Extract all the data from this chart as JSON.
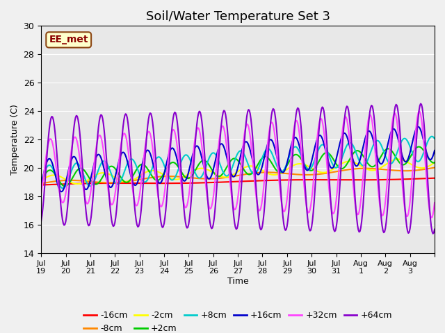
{
  "title": "Soil/Water Temperature Set 3",
  "ylabel": "Temperature (C)",
  "xlabel": "Time",
  "annotation": "EE_met",
  "ylim": [
    14,
    30
  ],
  "yticks": [
    14,
    16,
    18,
    20,
    22,
    24,
    26,
    28,
    30
  ],
  "xtick_positions": [
    0,
    1,
    2,
    3,
    4,
    5,
    6,
    7,
    8,
    9,
    10,
    11,
    12,
    13,
    14,
    15,
    16
  ],
  "xtick_labels": [
    "Jul\n19",
    "Jul\n20",
    "Jul\n21",
    "Jul\n22",
    "Jul\n23",
    "Jul\n24",
    "Jul\n25",
    "Jul\n26",
    "Jul\n27",
    "Jul\n28",
    "Jul\n29",
    "Jul\n30",
    "Jul\n31",
    "Aug\n1",
    "Aug\n2",
    "Aug\n3",
    ""
  ],
  "series_labels": [
    "-16cm",
    "-8cm",
    "-2cm",
    "+2cm",
    "+8cm",
    "+16cm",
    "+32cm",
    "+64cm"
  ],
  "series_colors": [
    "#ff0000",
    "#ff8800",
    "#ffff00",
    "#00cc00",
    "#00cccc",
    "#0000cc",
    "#ff44ff",
    "#8800cc"
  ],
  "series_linewidths": [
    1.5,
    1.5,
    1.5,
    1.5,
    1.5,
    1.5,
    1.5,
    1.5
  ],
  "n_points": 481,
  "background_color": "#e8e8e8",
  "plot_background": "#e8e8e8",
  "title_fontsize": 13,
  "axis_fontsize": 9,
  "legend_fontsize": 9
}
